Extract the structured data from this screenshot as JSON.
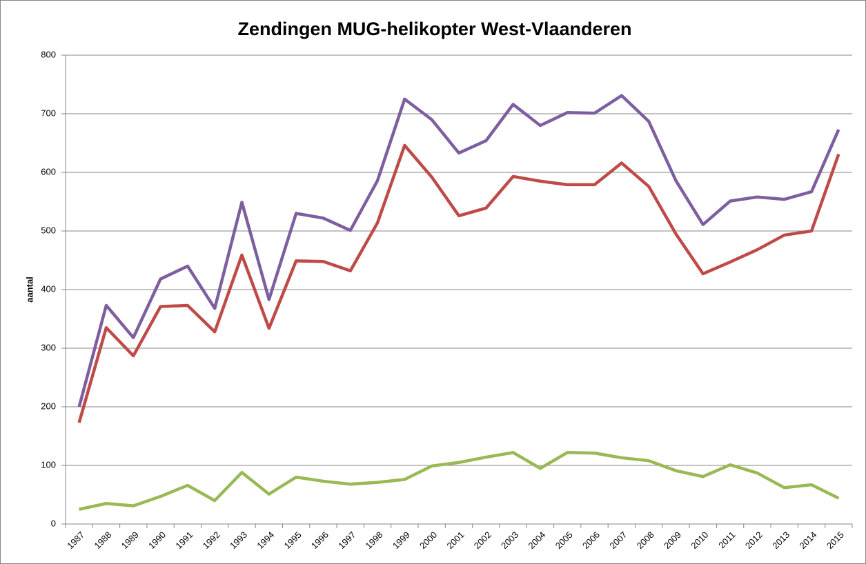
{
  "chart_data": {
    "type": "line",
    "title": "Zendingen MUG-helikopter West-Vlaanderen",
    "y_label": "aantal",
    "categories": [
      "1987",
      "1988",
      "1989",
      "1990",
      "1991",
      "1992",
      "1993",
      "1994",
      "1995",
      "1996",
      "1997",
      "1998",
      "1999",
      "2000",
      "2001",
      "2002",
      "2003",
      "2004",
      "2005",
      "2006",
      "2007",
      "2008",
      "2009",
      "2010",
      "2011",
      "2012",
      "2013",
      "2014",
      "2015"
    ],
    "series": [
      {
        "color": "#7d5fa0",
        "values": [
          200,
          373,
          318,
          418,
          440,
          368,
          549,
          383,
          530,
          522,
          501,
          586,
          725,
          690,
          633,
          654,
          716,
          680,
          702,
          701,
          731,
          687,
          586,
          511,
          551,
          558,
          554,
          567,
          673
        ]
      },
      {
        "color": "#be4b48",
        "values": [
          173,
          335,
          287,
          371,
          373,
          328,
          459,
          334,
          449,
          448,
          432,
          514,
          646,
          592,
          526,
          539,
          593,
          585,
          579,
          579,
          616,
          576,
          495,
          427,
          447,
          468,
          493,
          500,
          631
        ]
      },
      {
        "color": "#98b954",
        "values": [
          25,
          35,
          31,
          47,
          66,
          40,
          88,
          51,
          80,
          73,
          68,
          71,
          76,
          99,
          105,
          114,
          122,
          95,
          122,
          121,
          113,
          108,
          91,
          81,
          101,
          87,
          62,
          67,
          44
        ]
      }
    ],
    "ylim": [
      0,
      800
    ],
    "yticks": [
      0,
      100,
      200,
      300,
      400,
      500,
      600,
      700,
      800
    ],
    "grid": true
  }
}
